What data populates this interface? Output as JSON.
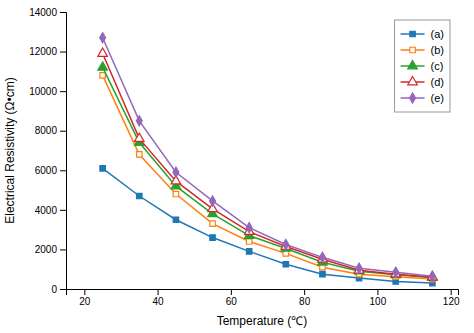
{
  "chart_data": {
    "type": "line",
    "xlabel": "Temperature (℃)",
    "ylabel": "Electrical Resistivity (Ω•cm)",
    "x": [
      25,
      35,
      45,
      55,
      65,
      75,
      85,
      95,
      105,
      115
    ],
    "series": [
      {
        "name": "(a)",
        "marker": "square",
        "values": [
          6100,
          4700,
          3500,
          2600,
          1900,
          1250,
          750,
          550,
          380,
          300
        ]
      },
      {
        "name": "(b)",
        "marker": "square-open",
        "values": [
          10800,
          6800,
          4800,
          3300,
          2400,
          1800,
          1100,
          750,
          620,
          500
        ]
      },
      {
        "name": "(c)",
        "marker": "triangle",
        "values": [
          11200,
          7400,
          5200,
          3800,
          2700,
          2050,
          1350,
          900,
          720,
          580
        ]
      },
      {
        "name": "(d)",
        "marker": "triangle-open",
        "values": [
          11900,
          7600,
          5450,
          4050,
          2900,
          2150,
          1500,
          950,
          750,
          600
        ]
      },
      {
        "name": "(e)",
        "marker": "diamond",
        "values": [
          12700,
          8500,
          5900,
          4450,
          3100,
          2250,
          1600,
          1050,
          850,
          650
        ]
      }
    ],
    "xlim": [
      15,
      122
    ],
    "ylim": [
      0,
      14000
    ],
    "xticks": [
      20,
      40,
      60,
      80,
      100,
      120
    ],
    "yticks": [
      0,
      2000,
      4000,
      6000,
      8000,
      10000,
      12000,
      14000
    ],
    "grid": false,
    "legend": "upper right",
    "line_style": "solid"
  }
}
